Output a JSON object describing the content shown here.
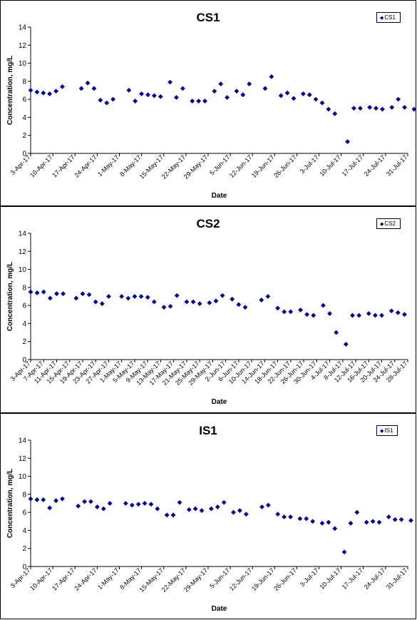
{
  "chart_data": [
    {
      "type": "scatter",
      "title": "CS1",
      "xlabel": "Date",
      "ylabel": "Concentration, mg/L",
      "ylim": [
        0,
        14
      ],
      "yticks": [
        0,
        2,
        4,
        6,
        8,
        10,
        12,
        14
      ],
      "xlim": [
        "2017-04-03",
        "2017-07-31"
      ],
      "xtick_labels": [
        "3-Apr-17",
        "10-Apr-17",
        "17-Apr-17",
        "24-Apr-17",
        "1-May-17",
        "8-May-17",
        "15-May-17",
        "22-May-17",
        "29-May-17",
        "5-Jun-17",
        "12-Jun-17",
        "19-Jun-17",
        "26-Jun-17",
        "3-Jul-17",
        "10-Jul-17",
        "17-Jul-17",
        "24-Jul-17",
        "31-Jul-17"
      ],
      "legend": "top-right",
      "color": "#00008B",
      "series": [
        {
          "name": "CS1",
          "points": [
            [
              "2017-04-03",
              7.0
            ],
            [
              "2017-04-05",
              6.8
            ],
            [
              "2017-04-07",
              6.7
            ],
            [
              "2017-04-09",
              6.6
            ],
            [
              "2017-04-11",
              6.9
            ],
            [
              "2017-04-13",
              7.4
            ],
            [
              "2017-04-19",
              7.2
            ],
            [
              "2017-04-21",
              7.8
            ],
            [
              "2017-04-23",
              7.2
            ],
            [
              "2017-04-25",
              5.9
            ],
            [
              "2017-04-27",
              5.6
            ],
            [
              "2017-04-29",
              6.0
            ],
            [
              "2017-05-04",
              7.0
            ],
            [
              "2017-05-06",
              5.8
            ],
            [
              "2017-05-08",
              6.6
            ],
            [
              "2017-05-10",
              6.5
            ],
            [
              "2017-05-12",
              6.4
            ],
            [
              "2017-05-14",
              6.3
            ],
            [
              "2017-05-17",
              7.9
            ],
            [
              "2017-05-19",
              6.2
            ],
            [
              "2017-05-21",
              7.2
            ],
            [
              "2017-05-24",
              5.8
            ],
            [
              "2017-05-26",
              5.8
            ],
            [
              "2017-05-28",
              5.8
            ],
            [
              "2017-05-31",
              6.9
            ],
            [
              "2017-06-02",
              7.7
            ],
            [
              "2017-06-04",
              6.2
            ],
            [
              "2017-06-07",
              6.9
            ],
            [
              "2017-06-09",
              6.5
            ],
            [
              "2017-06-11",
              7.7
            ],
            [
              "2017-06-16",
              7.2
            ],
            [
              "2017-06-18",
              8.5
            ],
            [
              "2017-06-21",
              6.4
            ],
            [
              "2017-06-23",
              6.7
            ],
            [
              "2017-06-25",
              6.1
            ],
            [
              "2017-06-28",
              6.6
            ],
            [
              "2017-06-30",
              6.5
            ],
            [
              "2017-07-02",
              6.0
            ],
            [
              "2017-07-04",
              5.6
            ],
            [
              "2017-07-06",
              4.9
            ],
            [
              "2017-07-08",
              4.4
            ],
            [
              "2017-07-12",
              1.3
            ],
            [
              "2017-07-14",
              5.0
            ],
            [
              "2017-07-16",
              5.0
            ],
            [
              "2017-07-19",
              5.1
            ],
            [
              "2017-07-21",
              5.0
            ],
            [
              "2017-07-23",
              4.9
            ],
            [
              "2017-07-26",
              5.1
            ],
            [
              "2017-07-28",
              6.0
            ],
            [
              "2017-07-30",
              5.1
            ],
            [
              "2017-08-02",
              4.9
            ]
          ]
        }
      ]
    },
    {
      "type": "scatter",
      "title": "CS2",
      "xlabel": "Date",
      "ylabel": "Concentration, mg/L",
      "ylim": [
        0,
        14
      ],
      "yticks": [
        0,
        2,
        4,
        6,
        8,
        10,
        12,
        14
      ],
      "xlim": [
        "2017-04-03",
        "2017-07-28"
      ],
      "xtick_labels": [
        "3-Apr-17",
        "7-Apr-17",
        "11-Apr-17",
        "15-Apr-17",
        "19-Apr-17",
        "23-Apr-17",
        "27-Apr-17",
        "1-May-17",
        "5-May-17",
        "9-May-17",
        "13-May-17",
        "17-May-17",
        "21-May-17",
        "25-May-17",
        "29-May-17",
        "2-Jun-17",
        "6-Jun-17",
        "10-Jun-17",
        "14-Jun-17",
        "18-Jun-17",
        "22-Jun-17",
        "26-Jun-17",
        "30-Jun-17",
        "4-Jul-17",
        "8-Jul-17",
        "12-Jul-17",
        "16-Jul-17",
        "20-Jul-17",
        "24-Jul-17",
        "28-Jul-17"
      ],
      "legend": "top-right",
      "color": "#00008B",
      "series": [
        {
          "name": "CS2",
          "points": [
            [
              "2017-04-03",
              7.5
            ],
            [
              "2017-04-05",
              7.4
            ],
            [
              "2017-04-07",
              7.5
            ],
            [
              "2017-04-09",
              6.8
            ],
            [
              "2017-04-11",
              7.3
            ],
            [
              "2017-04-13",
              7.3
            ],
            [
              "2017-04-17",
              6.8
            ],
            [
              "2017-04-19",
              7.3
            ],
            [
              "2017-04-21",
              7.2
            ],
            [
              "2017-04-23",
              6.4
            ],
            [
              "2017-04-25",
              6.2
            ],
            [
              "2017-04-27",
              7.0
            ],
            [
              "2017-05-01",
              7.0
            ],
            [
              "2017-05-03",
              6.8
            ],
            [
              "2017-05-05",
              7.0
            ],
            [
              "2017-05-07",
              7.0
            ],
            [
              "2017-05-09",
              6.9
            ],
            [
              "2017-05-11",
              6.4
            ],
            [
              "2017-05-14",
              5.8
            ],
            [
              "2017-05-16",
              5.9
            ],
            [
              "2017-05-18",
              7.1
            ],
            [
              "2017-05-21",
              6.4
            ],
            [
              "2017-05-23",
              6.4
            ],
            [
              "2017-05-25",
              6.2
            ],
            [
              "2017-05-28",
              6.3
            ],
            [
              "2017-05-30",
              6.5
            ],
            [
              "2017-06-01",
              7.1
            ],
            [
              "2017-06-04",
              6.7
            ],
            [
              "2017-06-06",
              6.1
            ],
            [
              "2017-06-08",
              5.8
            ],
            [
              "2017-06-13",
              6.6
            ],
            [
              "2017-06-15",
              7.0
            ],
            [
              "2017-06-18",
              5.7
            ],
            [
              "2017-06-20",
              5.3
            ],
            [
              "2017-06-22",
              5.3
            ],
            [
              "2017-06-25",
              5.5
            ],
            [
              "2017-06-27",
              5.0
            ],
            [
              "2017-06-29",
              4.9
            ],
            [
              "2017-07-02",
              6.0
            ],
            [
              "2017-07-04",
              5.1
            ],
            [
              "2017-07-06",
              3.0
            ],
            [
              "2017-07-09",
              1.7
            ],
            [
              "2017-07-11",
              4.9
            ],
            [
              "2017-07-13",
              4.9
            ],
            [
              "2017-07-16",
              5.1
            ],
            [
              "2017-07-18",
              4.9
            ],
            [
              "2017-07-20",
              4.9
            ],
            [
              "2017-07-23",
              5.4
            ],
            [
              "2017-07-25",
              5.2
            ],
            [
              "2017-07-27",
              5.0
            ]
          ]
        }
      ]
    },
    {
      "type": "scatter",
      "title": "IS1",
      "xlabel": "Date",
      "ylabel": "Concentration, mg/L",
      "ylim": [
        0,
        14
      ],
      "yticks": [
        0,
        2,
        4,
        6,
        8,
        10,
        12,
        14
      ],
      "xlim": [
        "2017-04-03",
        "2017-07-31"
      ],
      "xtick_labels": [
        "3-Apr-17",
        "10-Apr-17",
        "17-Apr-17",
        "24-Apr-17",
        "1-May-17",
        "8-May-17",
        "15-May-17",
        "22-May-17",
        "29-May-17",
        "5-Jun-17",
        "12-Jun-17",
        "19-Jun-17",
        "26-Jun-17",
        "3-Jul-17",
        "10-Jul-17",
        "17-Jul-17",
        "24-Jul-17",
        "31-Jul-17"
      ],
      "legend": "top-right",
      "color": "#00008B",
      "series": [
        {
          "name": "IS1",
          "points": [
            [
              "2017-04-03",
              7.5
            ],
            [
              "2017-04-05",
              7.4
            ],
            [
              "2017-04-07",
              7.4
            ],
            [
              "2017-04-09",
              6.5
            ],
            [
              "2017-04-11",
              7.3
            ],
            [
              "2017-04-13",
              7.5
            ],
            [
              "2017-04-18",
              6.7
            ],
            [
              "2017-04-20",
              7.2
            ],
            [
              "2017-04-22",
              7.2
            ],
            [
              "2017-04-24",
              6.6
            ],
            [
              "2017-04-26",
              6.4
            ],
            [
              "2017-04-28",
              7.0
            ],
            [
              "2017-05-03",
              7.0
            ],
            [
              "2017-05-05",
              6.8
            ],
            [
              "2017-05-07",
              6.9
            ],
            [
              "2017-05-09",
              7.0
            ],
            [
              "2017-05-11",
              6.9
            ],
            [
              "2017-05-13",
              6.4
            ],
            [
              "2017-05-16",
              5.7
            ],
            [
              "2017-05-18",
              5.7
            ],
            [
              "2017-05-20",
              7.1
            ],
            [
              "2017-05-23",
              6.3
            ],
            [
              "2017-05-25",
              6.4
            ],
            [
              "2017-05-27",
              6.2
            ],
            [
              "2017-05-30",
              6.4
            ],
            [
              "2017-06-01",
              6.6
            ],
            [
              "2017-06-03",
              7.1
            ],
            [
              "2017-06-06",
              6.0
            ],
            [
              "2017-06-08",
              6.2
            ],
            [
              "2017-06-10",
              5.8
            ],
            [
              "2017-06-15",
              6.6
            ],
            [
              "2017-06-17",
              6.8
            ],
            [
              "2017-06-20",
              5.8
            ],
            [
              "2017-06-22",
              5.5
            ],
            [
              "2017-06-24",
              5.5
            ],
            [
              "2017-06-27",
              5.3
            ],
            [
              "2017-06-29",
              5.3
            ],
            [
              "2017-07-01",
              5.0
            ],
            [
              "2017-07-04",
              4.8
            ],
            [
              "2017-07-06",
              4.9
            ],
            [
              "2017-07-08",
              4.2
            ],
            [
              "2017-07-11",
              1.6
            ],
            [
              "2017-07-13",
              4.8
            ],
            [
              "2017-07-15",
              6.0
            ],
            [
              "2017-07-18",
              4.9
            ],
            [
              "2017-07-20",
              5.0
            ],
            [
              "2017-07-22",
              4.9
            ],
            [
              "2017-07-25",
              5.5
            ],
            [
              "2017-07-27",
              5.2
            ],
            [
              "2017-07-29",
              5.2
            ],
            [
              "2017-08-01",
              5.1
            ]
          ]
        }
      ]
    }
  ]
}
